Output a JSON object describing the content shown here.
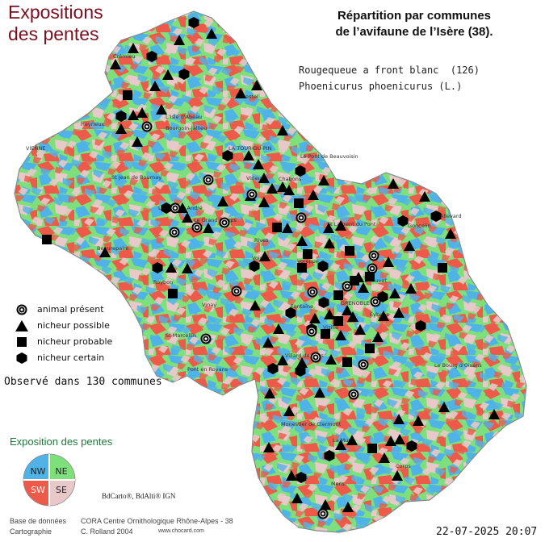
{
  "map": {
    "title": "Expositions\ndes pentes",
    "main_title": "Répartition par communes\nde l’avifaune de l’Isère (38).",
    "species_common": "Rougequeue a front blanc  (126)",
    "species_latin": "Phoenicurus phoenicurus (L.)",
    "observed": "Observé dans 130 communes",
    "slope_legend_title": "Exposition des pentes",
    "copyright": "BdCarto®, BdAlti® IGN",
    "date": "22-07-2025 20:07"
  },
  "legend": [
    {
      "symbol": "present",
      "label": "animal présent"
    },
    {
      "symbol": "possible",
      "label": "nicheur possible"
    },
    {
      "symbol": "probable",
      "label": "nicheur probable"
    },
    {
      "symbol": "certain",
      "label": "nicheur certain"
    }
  ],
  "compass": [
    {
      "label": "NW",
      "color": "#4fb3e8"
    },
    {
      "label": "NE",
      "color": "#7ee07a"
    },
    {
      "label": "SW",
      "color": "#ee5a4a"
    },
    {
      "label": "SE",
      "color": "#e8c8c8"
    }
  ],
  "credits": {
    "db_label": "Base de données",
    "db_value": "CORA Centre Ornithologique Rhône-Alpes - 38",
    "carto_label": "Cartographie",
    "carto_value": "C. Rolland 2004",
    "website": "www.chocard.com"
  },
  "places": [
    "Heyrieux",
    "L'Isle d'Abeau",
    "Bourgoin-Jallieu",
    "LA TOUR-DU-PIN",
    "Le Pont de Beauvoisin",
    "VIENNE",
    "St Jean de Bournay",
    "Virieu",
    "Chabons",
    "La Côte St André",
    "Le Grand Lemps",
    "Rives",
    "Voiron",
    "St Laurent du Pont",
    "Goncelin",
    "Roybon",
    "Allevard",
    "Voreppe",
    "Le Touvet",
    "St Marcellin",
    "Vinay",
    "Fontaine",
    "GRENOBLE",
    "Eybens",
    "Vizille",
    "Villard de Lans",
    "Pont en Royans",
    "Le Bourg d'Oisans",
    "Monestier de Clermont",
    "La Mure",
    "Corps",
    "Clelles",
    "Mens",
    "Beaurepaire",
    "Morestel",
    "Crémieu"
  ],
  "colors": {
    "nw": "#4fb3e8",
    "ne": "#7ee07a",
    "sw": "#ee5a4a",
    "se": "#e8c8c8",
    "title": "#7a1020",
    "slope_title": "#1f7a3a"
  }
}
